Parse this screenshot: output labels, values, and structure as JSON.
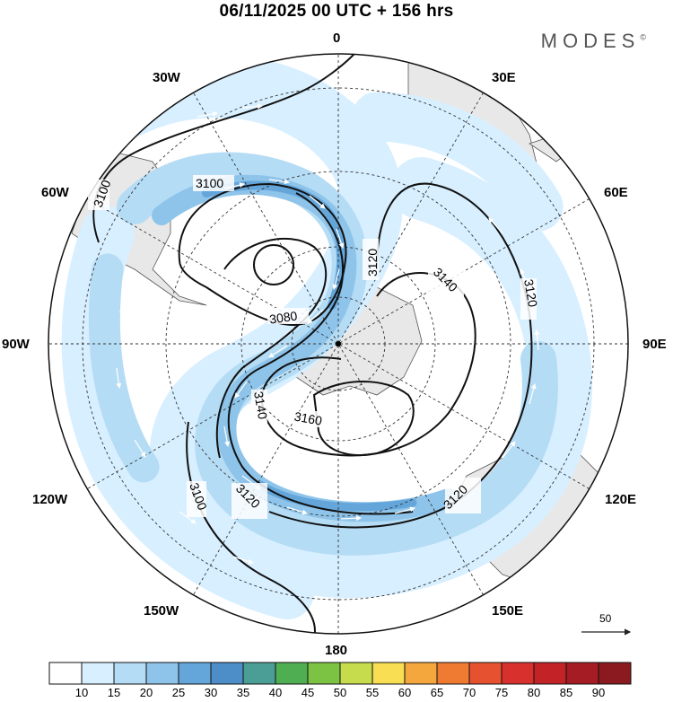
{
  "header": {
    "title": "06/11/2025  00 UTC  + 156 hrs",
    "brand": "MODES",
    "brand_mark": "©"
  },
  "map": {
    "projection": "south-polar-stereographic",
    "longitude_labels": {
      "top": "0",
      "top_left": "30W",
      "top_right": "30E",
      "left_upper": "60W",
      "right_upper": "60E",
      "left": "90W",
      "right": "90E",
      "left_lower": "120W",
      "right_lower": "120E",
      "bottom_left": "150W",
      "bottom_right": "150E",
      "bottom": "180"
    },
    "contour_labels": [
      "3100",
      "3100",
      "3100",
      "3080",
      "3120",
      "3140",
      "3120",
      "3140",
      "3160",
      "3120",
      "3120"
    ],
    "reference_vector": {
      "value": "50"
    },
    "colors": {
      "land": "#e8e8e8",
      "ocean": "#ffffff",
      "shade_10": "#d7efff",
      "shade_15": "#b5dcf5",
      "shade_20": "#8ec4ea",
      "shade_25": "#64a6da"
    }
  },
  "colorbar": {
    "labels": [
      "10",
      "15",
      "20",
      "25",
      "30",
      "35",
      "40",
      "45",
      "50",
      "55",
      "60",
      "65",
      "70",
      "75",
      "80",
      "85",
      "90"
    ],
    "colors": [
      "#ffffff",
      "#d7efff",
      "#b5dcf5",
      "#8ec4ea",
      "#64a6da",
      "#4d8ec8",
      "#4a9e96",
      "#4fae52",
      "#7cc243",
      "#c6dc4c",
      "#f7de52",
      "#f4a73c",
      "#ef7b33",
      "#e65230",
      "#d8302c",
      "#c32327",
      "#a51c24",
      "#8a1a1f"
    ]
  }
}
